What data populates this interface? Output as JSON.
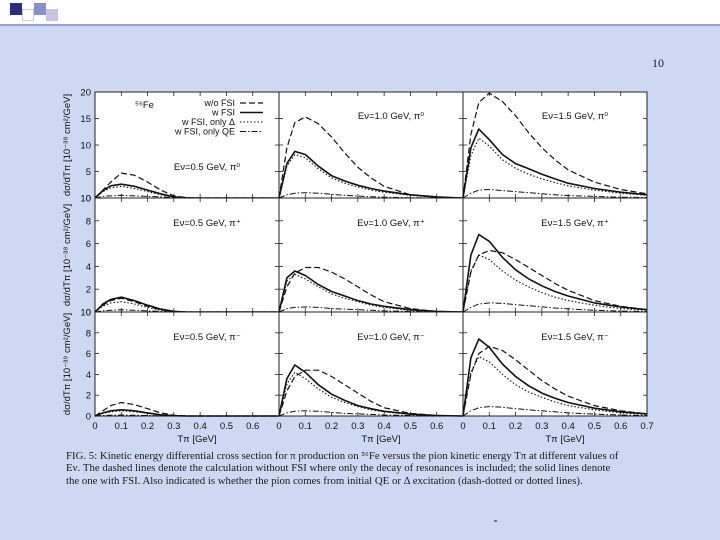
{
  "slide": {
    "page_number": "10"
  },
  "figure": {
    "caption_lines": [
      "FIG. 5: Kinetic energy differential cross section for π production on ⁵⁶Fe versus the pion kinetic energy Tπ at different values of",
      "Eν. The dashed lines denote the calculation without FSI where only the decay of resonances is included; the solid lines denote",
      "the one with FSI. Also indicated is whether the pion comes from initial QE or Δ excitation (dash-dotted or dotted lines)."
    ],
    "nucleus_label": "⁵⁶Fe",
    "legend": [
      "w/o FSI",
      "w FSI",
      "w FSI, only Δ",
      "w FSI, only QE"
    ]
  },
  "chart_data": {
    "type": "line",
    "xlabel": "Tπ [GeV]",
    "xlim": [
      0,
      0.7
    ],
    "x_ticks": [
      "0",
      "0.1",
      "0.2",
      "0.3",
      "0.4",
      "0.5",
      "0.6",
      "0.7"
    ],
    "x_ticks_edge": [
      "0",
      "0.1",
      "0.2",
      "0.3",
      "0.4",
      "0.5",
      "0.6"
    ],
    "x": [
      0,
      0.03,
      0.06,
      0.1,
      0.15,
      0.2,
      0.25,
      0.3,
      0.35,
      0.4,
      0.5,
      0.6,
      0.7
    ],
    "rows": [
      {
        "ylabel": "dσ/dTπ [10⁻³⁸ cm²/GeV]",
        "ylim": [
          0,
          20
        ],
        "y_ticks": [
          0,
          5,
          10,
          15,
          20
        ],
        "panels": [
          {
            "label": "Eν=0.5 GeV, π⁰",
            "series": [
              {
                "style": "wo_fsi",
                "values": [
                  0,
                  1.5,
                  3.0,
                  4.7,
                  4.3,
                  3.0,
                  1.5,
                  0.4,
                  0.05,
                  0,
                  0,
                  0,
                  0
                ]
              },
              {
                "style": "w_fsi",
                "values": [
                  0,
                  1.4,
                  2.3,
                  2.6,
                  2.2,
                  1.5,
                  0.8,
                  0.2,
                  0.03,
                  0,
                  0,
                  0,
                  0
                ]
              },
              {
                "style": "delta",
                "values": [
                  0,
                  1.2,
                  1.9,
                  2.2,
                  1.8,
                  1.2,
                  0.6,
                  0.15,
                  0.02,
                  0,
                  0,
                  0,
                  0
                ]
              },
              {
                "style": "qe",
                "values": [
                  0,
                  0.3,
                  0.4,
                  0.5,
                  0.4,
                  0.3,
                  0.2,
                  0.1,
                  0,
                  0,
                  0,
                  0,
                  0
                ]
              }
            ]
          },
          {
            "label": "Eν=1.0 GeV, π⁰",
            "series": [
              {
                "style": "wo_fsi",
                "values": [
                  0,
                  9.5,
                  14.2,
                  15.3,
                  14.0,
                  11.5,
                  8.5,
                  5.8,
                  3.8,
                  2.2,
                  0.6,
                  0.1,
                  0
                ]
              },
              {
                "style": "w_fsi",
                "values": [
                  0,
                  6.5,
                  8.8,
                  8.2,
                  6.0,
                  4.2,
                  3.2,
                  2.4,
                  1.8,
                  1.3,
                  0.6,
                  0.2,
                  0
                ]
              },
              {
                "style": "delta",
                "values": [
                  0,
                  6.0,
                  8.2,
                  7.6,
                  5.5,
                  3.8,
                  2.8,
                  2.1,
                  1.5,
                  1.1,
                  0.5,
                  0.15,
                  0
                ]
              },
              {
                "style": "qe",
                "values": [
                  0,
                  0.6,
                  0.9,
                  1.0,
                  0.9,
                  0.7,
                  0.5,
                  0.35,
                  0.25,
                  0.15,
                  0.05,
                  0,
                  0
                ]
              }
            ]
          },
          {
            "label": "Eν=1.5 GeV, π⁰",
            "series": [
              {
                "style": "wo_fsi",
                "values": [
                  0,
                  12.0,
                  18.0,
                  19.8,
                  18.2,
                  15.5,
                  12.3,
                  9.5,
                  7.2,
                  5.3,
                  3.0,
                  1.6,
                  0.8
                ]
              },
              {
                "style": "w_fsi",
                "values": [
                  0,
                  9.5,
                  13.0,
                  11.0,
                  8.2,
                  6.5,
                  5.5,
                  4.5,
                  3.6,
                  2.8,
                  1.8,
                  1.1,
                  0.6
                ]
              },
              {
                "style": "delta",
                "values": [
                  0,
                  8.0,
                  11.3,
                  9.8,
                  7.2,
                  5.6,
                  4.5,
                  3.6,
                  2.9,
                  2.3,
                  1.5,
                  0.9,
                  0.5
                ]
              },
              {
                "style": "qe",
                "values": [
                  0,
                  0.9,
                  1.5,
                  1.6,
                  1.4,
                  1.2,
                  1.0,
                  0.8,
                  0.6,
                  0.45,
                  0.3,
                  0.15,
                  0.1
                ]
              }
            ]
          }
        ]
      },
      {
        "ylabel": "dσ/dTπ [10⁻³⁸ cm²/GeV]",
        "ylim": [
          0,
          10
        ],
        "y_ticks": [
          0,
          2,
          4,
          6,
          8,
          10
        ],
        "panels": [
          {
            "label": "Eν=0.5 GeV, π⁺",
            "series": [
              {
                "style": "wo_fsi",
                "values": [
                  0,
                  0.6,
                  1.0,
                  1.2,
                  0.9,
                  0.5,
                  0.2,
                  0.05,
                  0,
                  0,
                  0,
                  0,
                  0
                ]
              },
              {
                "style": "w_fsi",
                "values": [
                  0,
                  0.7,
                  1.1,
                  1.3,
                  1.0,
                  0.6,
                  0.25,
                  0.05,
                  0,
                  0,
                  0,
                  0,
                  0
                ]
              },
              {
                "style": "delta",
                "values": [
                  0,
                  0.5,
                  0.8,
                  0.9,
                  0.7,
                  0.4,
                  0.15,
                  0.03,
                  0,
                  0,
                  0,
                  0,
                  0
                ]
              },
              {
                "style": "qe",
                "values": [
                  0,
                  0.1,
                  0.15,
                  0.2,
                  0.15,
                  0.1,
                  0.05,
                  0,
                  0,
                  0,
                  0,
                  0,
                  0
                ]
              }
            ]
          },
          {
            "label": "Eν=1.0 GeV, π⁺",
            "series": [
              {
                "style": "wo_fsi",
                "values": [
                  0,
                  2.2,
                  3.4,
                  3.9,
                  3.9,
                  3.5,
                  2.9,
                  2.2,
                  1.5,
                  0.9,
                  0.3,
                  0.05,
                  0
                ]
              },
              {
                "style": "w_fsi",
                "values": [
                  0,
                  3.0,
                  3.6,
                  3.2,
                  2.4,
                  1.8,
                  1.4,
                  1.0,
                  0.7,
                  0.5,
                  0.2,
                  0.05,
                  0
                ]
              },
              {
                "style": "delta",
                "values": [
                  0,
                  2.7,
                  3.3,
                  2.9,
                  2.2,
                  1.6,
                  1.2,
                  0.9,
                  0.6,
                  0.4,
                  0.15,
                  0.05,
                  0
                ]
              },
              {
                "style": "qe",
                "values": [
                  0,
                  0.3,
                  0.4,
                  0.45,
                  0.4,
                  0.3,
                  0.25,
                  0.2,
                  0.15,
                  0.1,
                  0.05,
                  0,
                  0
                ]
              }
            ]
          },
          {
            "label": "Eν=1.5 GeV, π⁺",
            "series": [
              {
                "style": "wo_fsi",
                "values": [
                  0,
                  3.5,
                  5.0,
                  5.4,
                  5.2,
                  4.6,
                  3.9,
                  3.2,
                  2.5,
                  1.9,
                  1.0,
                  0.5,
                  0.2
                ]
              },
              {
                "style": "w_fsi",
                "values": [
                  0,
                  5.0,
                  6.8,
                  6.2,
                  4.8,
                  3.7,
                  2.9,
                  2.3,
                  1.8,
                  1.4,
                  0.8,
                  0.45,
                  0.2
                ]
              },
              {
                "style": "delta",
                "values": [
                  0,
                  3.6,
                  5.0,
                  4.6,
                  3.6,
                  2.8,
                  2.2,
                  1.7,
                  1.3,
                  1.0,
                  0.6,
                  0.3,
                  0.15
                ]
              },
              {
                "style": "qe",
                "values": [
                  0,
                  0.4,
                  0.7,
                  0.8,
                  0.75,
                  0.65,
                  0.55,
                  0.45,
                  0.35,
                  0.28,
                  0.15,
                  0.08,
                  0.04
                ]
              }
            ]
          }
        ]
      },
      {
        "ylabel": "dσ/dTπ [10⁻³⁹ cm²/GeV]",
        "ylim": [
          0,
          10
        ],
        "y_ticks": [
          0,
          2,
          4,
          6,
          8,
          10
        ],
        "panels": [
          {
            "label": "Eν=0.5 GeV, π⁻",
            "series": [
              {
                "style": "wo_fsi",
                "values": [
                  0,
                  0.5,
                  1.0,
                  1.3,
                  1.1,
                  0.7,
                  0.3,
                  0.08,
                  0,
                  0,
                  0,
                  0,
                  0
                ]
              },
              {
                "style": "w_fsi",
                "values": [
                  0,
                  0.3,
                  0.5,
                  0.6,
                  0.5,
                  0.3,
                  0.12,
                  0.03,
                  0,
                  0,
                  0,
                  0,
                  0
                ]
              },
              {
                "style": "delta",
                "values": [
                  0,
                  0.25,
                  0.4,
                  0.5,
                  0.4,
                  0.25,
                  0.1,
                  0.02,
                  0,
                  0,
                  0,
                  0,
                  0
                ]
              },
              {
                "style": "qe",
                "values": [
                  0,
                  0.05,
                  0.08,
                  0.1,
                  0.08,
                  0.05,
                  0.02,
                  0,
                  0,
                  0,
                  0,
                  0,
                  0
                ]
              }
            ]
          },
          {
            "label": "Eν=1.0 GeV, π⁻",
            "series": [
              {
                "style": "wo_fsi",
                "values": [
                  0,
                  2.4,
                  3.8,
                  4.4,
                  4.4,
                  3.8,
                  3.0,
                  2.2,
                  1.4,
                  0.8,
                  0.25,
                  0.05,
                  0
                ]
              },
              {
                "style": "w_fsi",
                "values": [
                  0,
                  3.6,
                  4.9,
                  4.2,
                  3.0,
                  2.1,
                  1.5,
                  1.0,
                  0.7,
                  0.45,
                  0.18,
                  0.05,
                  0
                ]
              },
              {
                "style": "delta",
                "values": [
                  0,
                  3.1,
                  4.2,
                  3.6,
                  2.6,
                  1.8,
                  1.3,
                  0.9,
                  0.6,
                  0.4,
                  0.15,
                  0.04,
                  0
                ]
              },
              {
                "style": "qe",
                "values": [
                  0,
                  0.3,
                  0.45,
                  0.5,
                  0.45,
                  0.35,
                  0.25,
                  0.2,
                  0.15,
                  0.1,
                  0.05,
                  0,
                  0
                ]
              }
            ]
          },
          {
            "label": "Eν=1.5 GeV, π⁻",
            "series": [
              {
                "style": "wo_fsi",
                "values": [
                  0,
                  4.0,
                  6.0,
                  6.7,
                  6.3,
                  5.4,
                  4.4,
                  3.4,
                  2.6,
                  1.9,
                  1.0,
                  0.5,
                  0.2
                ]
              },
              {
                "style": "w_fsi",
                "values": [
                  0,
                  5.6,
                  7.4,
                  6.6,
                  5.0,
                  3.8,
                  2.9,
                  2.2,
                  1.7,
                  1.3,
                  0.75,
                  0.4,
                  0.2
                ]
              },
              {
                "style": "delta",
                "values": [
                  0,
                  4.2,
                  5.7,
                  5.2,
                  4.0,
                  3.0,
                  2.3,
                  1.8,
                  1.35,
                  1.0,
                  0.6,
                  0.3,
                  0.15
                ]
              },
              {
                "style": "qe",
                "values": [
                  0,
                  0.5,
                  0.8,
                  0.9,
                  0.85,
                  0.7,
                  0.6,
                  0.5,
                  0.4,
                  0.3,
                  0.18,
                  0.1,
                  0.05
                ]
              }
            ]
          }
        ]
      }
    ]
  }
}
